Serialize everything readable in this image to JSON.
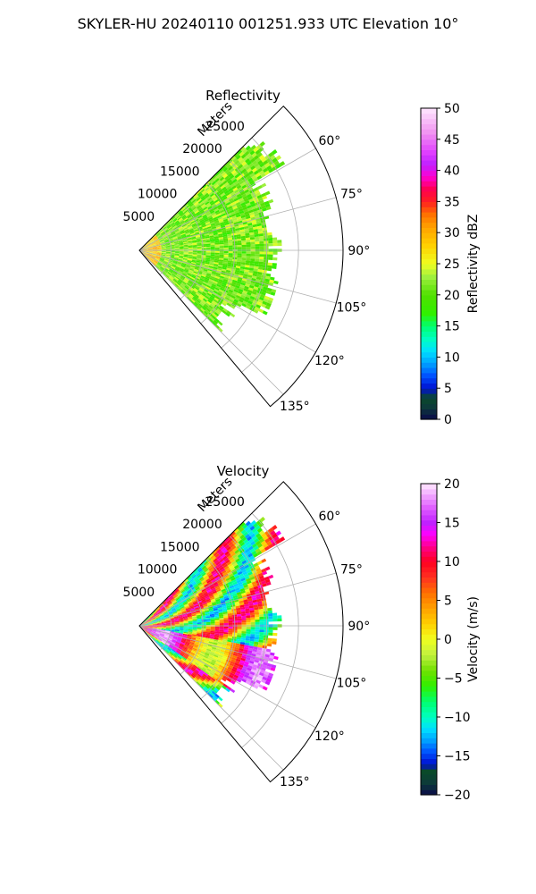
{
  "title": "SKYLER-HU  20240110  001251.933 UTC Elevation 10°",
  "chart_data": [
    {
      "type": "heatmap",
      "title": "Reflectivity",
      "radial_axis_label": "Meters",
      "range_ticks": [
        "5000",
        "10000",
        "15000",
        "20000",
        "25000"
      ],
      "range_values": [
        5000,
        10000,
        15000,
        20000,
        25000
      ],
      "azimuth_ticks": [
        "60°",
        "75°",
        "90°",
        "105°",
        "120°",
        "135°"
      ],
      "azimuth_values": [
        60,
        75,
        90,
        105,
        120,
        135
      ],
      "azimuth_range": [
        45,
        140
      ],
      "range_max": 32000,
      "grid": true,
      "colorbar": {
        "label": "Reflectivity dBZ",
        "min": 0,
        "max": 50,
        "ticks": [
          "0",
          "5",
          "10",
          "15",
          "20",
          "25",
          "30",
          "35",
          "40",
          "45",
          "50"
        ],
        "tick_values": [
          0,
          5,
          10,
          15,
          20,
          25,
          30,
          35,
          40,
          45,
          50
        ],
        "stops": [
          {
            "v": 0,
            "c": "#0a0a4a"
          },
          {
            "v": 2,
            "c": "#0d3a3a"
          },
          {
            "v": 3.5,
            "c": "#0a4a2a"
          },
          {
            "v": 5,
            "c": "#0010d0"
          },
          {
            "v": 7,
            "c": "#0050ff"
          },
          {
            "v": 9,
            "c": "#00a0ff"
          },
          {
            "v": 11,
            "c": "#00e0ff"
          },
          {
            "v": 13,
            "c": "#00ffc0"
          },
          {
            "v": 15,
            "c": "#00ff70"
          },
          {
            "v": 17,
            "c": "#30f000"
          },
          {
            "v": 20,
            "c": "#50e000"
          },
          {
            "v": 23,
            "c": "#a0f040"
          },
          {
            "v": 25,
            "c": "#f0ff20"
          },
          {
            "v": 28,
            "c": "#ffd000"
          },
          {
            "v": 31,
            "c": "#ffa000"
          },
          {
            "v": 33,
            "c": "#ff7000"
          },
          {
            "v": 35,
            "c": "#ff2020"
          },
          {
            "v": 37,
            "c": "#ff0050"
          },
          {
            "v": 39,
            "c": "#ff00d0"
          },
          {
            "v": 41,
            "c": "#c020ff"
          },
          {
            "v": 43,
            "c": "#e040ff"
          },
          {
            "v": 46,
            "c": "#f090f0"
          },
          {
            "v": 50,
            "c": "#ffe8ff"
          }
        ]
      },
      "field": "reflectivity"
    },
    {
      "type": "heatmap",
      "title": "Velocity",
      "radial_axis_label": "Meters",
      "range_ticks": [
        "5000",
        "10000",
        "15000",
        "20000",
        "25000"
      ],
      "range_values": [
        5000,
        10000,
        15000,
        20000,
        25000
      ],
      "azimuth_ticks": [
        "60°",
        "75°",
        "90°",
        "105°",
        "120°",
        "135°"
      ],
      "azimuth_values": [
        60,
        75,
        90,
        105,
        120,
        135
      ],
      "azimuth_range": [
        45,
        140
      ],
      "range_max": 32000,
      "grid": true,
      "colorbar": {
        "label": "Velocity (m/s)",
        "min": -20,
        "max": 20,
        "ticks": [
          "−20",
          "−15",
          "−10",
          "−5",
          "0",
          "5",
          "10",
          "15",
          "20"
        ],
        "tick_values": [
          -20,
          -15,
          -10,
          -5,
          0,
          5,
          10,
          15,
          20
        ],
        "stops": [
          {
            "v": -20,
            "c": "#0a0a4a"
          },
          {
            "v": -18.5,
            "c": "#0d3a3a"
          },
          {
            "v": -17,
            "c": "#0a4a2a"
          },
          {
            "v": -16,
            "c": "#0010d0"
          },
          {
            "v": -14.5,
            "c": "#0050ff"
          },
          {
            "v": -13,
            "c": "#00a0ff"
          },
          {
            "v": -11.5,
            "c": "#00e0ff"
          },
          {
            "v": -10,
            "c": "#00ffc0"
          },
          {
            "v": -8,
            "c": "#00ff70"
          },
          {
            "v": -6,
            "c": "#30f000"
          },
          {
            "v": -4,
            "c": "#70e000"
          },
          {
            "v": -2,
            "c": "#c0f040"
          },
          {
            "v": 0,
            "c": "#f0ff20"
          },
          {
            "v": 2,
            "c": "#ffd000"
          },
          {
            "v": 4,
            "c": "#ffa000"
          },
          {
            "v": 6,
            "c": "#ff7000"
          },
          {
            "v": 8,
            "c": "#ff3020"
          },
          {
            "v": 10,
            "c": "#ff0020"
          },
          {
            "v": 12,
            "c": "#ff0090"
          },
          {
            "v": 13.5,
            "c": "#ff00ff"
          },
          {
            "v": 15,
            "c": "#c020ff"
          },
          {
            "v": 17,
            "c": "#e060ff"
          },
          {
            "v": 20,
            "c": "#ffe8ff"
          }
        ]
      },
      "field": "velocity"
    }
  ]
}
